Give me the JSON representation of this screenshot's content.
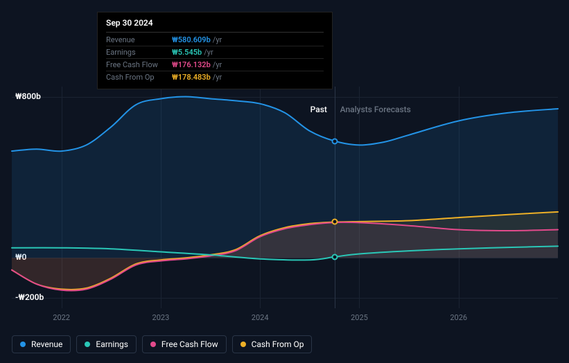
{
  "tooltip": {
    "date": "Sep 30 2024",
    "unit": "/yr",
    "rows": [
      {
        "label": "Revenue",
        "value": "₩580.609b",
        "color": "#2393e6"
      },
      {
        "label": "Earnings",
        "value": "₩5.545b",
        "color": "#2ac7b7"
      },
      {
        "label": "Free Cash Flow",
        "value": "₩176.132b",
        "color": "#e24a8b"
      },
      {
        "label": "Cash From Op",
        "value": "₩178.483b",
        "color": "#eeb027"
      }
    ]
  },
  "chart": {
    "background_color": "#0d1421",
    "gridline_color": "#1a2332",
    "divider_color": "#2a3547",
    "text_color": "#6b7583",
    "label_color": "#ffffff",
    "y_axis": {
      "ticks": [
        {
          "label": "₩800b",
          "value": 800
        },
        {
          "label": "₩0",
          "value": 0
        },
        {
          "label": "-₩200b",
          "value": -200
        }
      ],
      "min": -250,
      "max": 850
    },
    "x_axis": {
      "ticks": [
        "2022",
        "2023",
        "2024",
        "2025",
        "2026"
      ],
      "min": 2021.5,
      "max": 2027.0
    },
    "divider": {
      "x": 2024.75,
      "left_label": "Past",
      "left_color": "#ffffff",
      "right_label": "Analysts Forecasts",
      "right_color": "#6b7583"
    },
    "series": [
      {
        "name": "Revenue",
        "color": "#2393e6",
        "fill_opacity": 0.12,
        "points": [
          [
            2021.5,
            530
          ],
          [
            2021.75,
            540
          ],
          [
            2022.0,
            530
          ],
          [
            2022.25,
            560
          ],
          [
            2022.5,
            650
          ],
          [
            2022.75,
            760
          ],
          [
            2023.0,
            790
          ],
          [
            2023.25,
            800
          ],
          [
            2023.5,
            790
          ],
          [
            2023.75,
            780
          ],
          [
            2024.0,
            765
          ],
          [
            2024.25,
            720
          ],
          [
            2024.5,
            630
          ],
          [
            2024.75,
            580
          ],
          [
            2025.0,
            560
          ],
          [
            2025.25,
            575
          ],
          [
            2025.5,
            610
          ],
          [
            2026.0,
            680
          ],
          [
            2026.5,
            720
          ],
          [
            2027.0,
            740
          ]
        ]
      },
      {
        "name": "Cash From Op",
        "color": "#eeb027",
        "fill_opacity": 0.1,
        "points": [
          [
            2021.5,
            -60
          ],
          [
            2021.75,
            -130
          ],
          [
            2022.0,
            -155
          ],
          [
            2022.25,
            -150
          ],
          [
            2022.5,
            -100
          ],
          [
            2022.75,
            -30
          ],
          [
            2023.0,
            -10
          ],
          [
            2023.25,
            0
          ],
          [
            2023.5,
            15
          ],
          [
            2023.75,
            40
          ],
          [
            2024.0,
            110
          ],
          [
            2024.25,
            150
          ],
          [
            2024.5,
            170
          ],
          [
            2024.75,
            178
          ],
          [
            2025.0,
            180
          ],
          [
            2025.5,
            185
          ],
          [
            2026.0,
            200
          ],
          [
            2026.5,
            215
          ],
          [
            2027.0,
            228
          ]
        ]
      },
      {
        "name": "Free Cash Flow",
        "color": "#e24a8b",
        "fill_opacity": 0.08,
        "points": [
          [
            2021.5,
            -60
          ],
          [
            2021.75,
            -130
          ],
          [
            2022.0,
            -160
          ],
          [
            2022.25,
            -155
          ],
          [
            2022.5,
            -105
          ],
          [
            2022.75,
            -35
          ],
          [
            2023.0,
            -15
          ],
          [
            2023.25,
            -5
          ],
          [
            2023.5,
            10
          ],
          [
            2023.75,
            35
          ],
          [
            2024.0,
            105
          ],
          [
            2024.25,
            145
          ],
          [
            2024.5,
            165
          ],
          [
            2024.75,
            176
          ],
          [
            2025.0,
            175
          ],
          [
            2025.5,
            160
          ],
          [
            2026.0,
            140
          ],
          [
            2026.5,
            135
          ],
          [
            2027.0,
            140
          ]
        ]
      },
      {
        "name": "Earnings",
        "color": "#2ac7b7",
        "fill_opacity": 0,
        "points": [
          [
            2021.5,
            50
          ],
          [
            2022.0,
            50
          ],
          [
            2022.5,
            45
          ],
          [
            2023.0,
            30
          ],
          [
            2023.5,
            15
          ],
          [
            2024.0,
            -5
          ],
          [
            2024.5,
            -10
          ],
          [
            2024.75,
            5
          ],
          [
            2025.0,
            20
          ],
          [
            2025.5,
            35
          ],
          [
            2026.0,
            45
          ],
          [
            2026.5,
            52
          ],
          [
            2027.0,
            58
          ]
        ]
      }
    ],
    "markers_at_divider": [
      {
        "series": "Revenue",
        "x": 2024.75,
        "y": 580,
        "color": "#2393e6"
      },
      {
        "series": "Cash From Op",
        "x": 2024.75,
        "y": 178,
        "color": "#eeb027"
      },
      {
        "series": "Earnings",
        "x": 2024.75,
        "y": 5,
        "color": "#2ac7b7"
      }
    ]
  },
  "legend": [
    {
      "label": "Revenue",
      "color": "#2393e6"
    },
    {
      "label": "Earnings",
      "color": "#2ac7b7"
    },
    {
      "label": "Free Cash Flow",
      "color": "#e24a8b"
    },
    {
      "label": "Cash From Op",
      "color": "#eeb027"
    }
  ]
}
